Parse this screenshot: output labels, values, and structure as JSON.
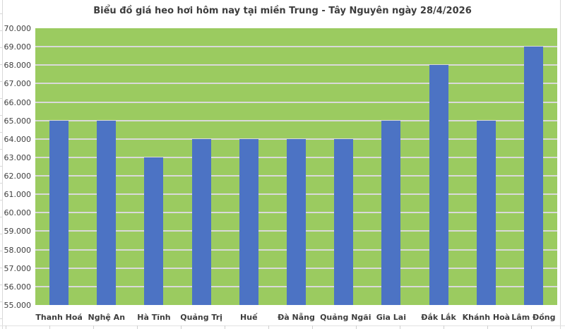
{
  "title": "Biểu đồ giá heo hơi hôm nay tại miền Trung - Tây Nguyên ngày 28/4/2026",
  "chart_data": {
    "type": "bar",
    "title": "Biểu đồ giá heo hơi hôm nay tại miền Trung - Tây Nguyên ngày 28/4/2026",
    "categories": [
      "Thanh Hoá",
      "Nghệ An",
      "Hà Tĩnh",
      "Quảng Trị",
      "Huế",
      "Đà Nẵng",
      "Quảng Ngãi",
      "Gia Lai",
      "Đắk Lắk",
      "Khánh Hoà",
      "Lâm Đồng"
    ],
    "values": [
      65000,
      65000,
      63000,
      64000,
      64000,
      64000,
      64000,
      65000,
      68000,
      65000,
      69000
    ],
    "xlabel": "",
    "ylabel": "",
    "ylim": [
      55000,
      70000
    ],
    "ytick_step": 1000,
    "y_tick_labels": [
      "70.000",
      "69.000",
      "68.000",
      "67.000",
      "66.000",
      "65.000",
      "64.000",
      "63.000",
      "62.000",
      "61.000",
      "60.000",
      "59.000",
      "58.000",
      "57.000",
      "56.000",
      "55.000"
    ],
    "grid": "horizontal",
    "legend": "none",
    "colors": {
      "bar": "#4c73c4",
      "plot_background": "#9bcb60",
      "gridline": "#d9d9d9",
      "title_text": "#3d3d3d",
      "axis_text": "#404040"
    }
  }
}
